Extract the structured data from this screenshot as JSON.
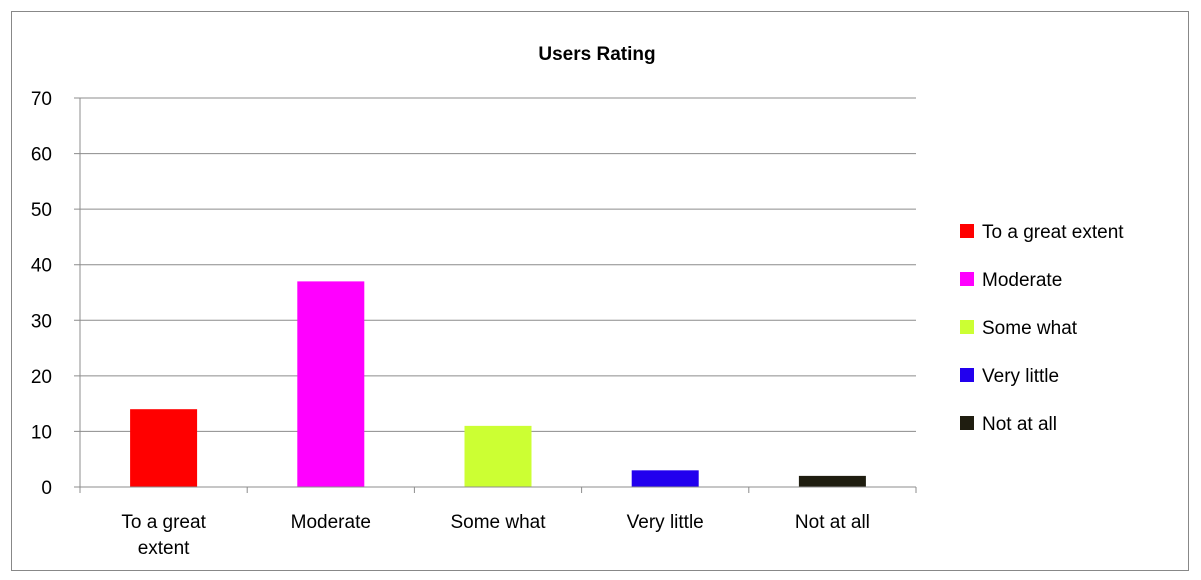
{
  "chart_data": {
    "type": "bar",
    "title": "Users Rating",
    "xlabel": "",
    "ylabel": "",
    "categories": [
      "To a great extent",
      "Moderate",
      "Some what",
      "Very little",
      "Not at all"
    ],
    "category_lines": [
      [
        "To a great",
        "extent"
      ],
      [
        "Moderate"
      ],
      [
        "Some what"
      ],
      [
        "Very little"
      ],
      [
        "Not at all"
      ]
    ],
    "values": [
      14,
      37,
      11,
      3,
      2
    ],
    "colors": [
      "#ff0000",
      "#ff00ff",
      "#ccff33",
      "#2200ee",
      "#1f1d10"
    ],
    "ylim": [
      0,
      70
    ],
    "yticks": [
      0,
      10,
      20,
      30,
      40,
      50,
      60,
      70
    ],
    "grid": true,
    "legend": {
      "placement": "right",
      "entries": [
        "To a great extent",
        "Moderate",
        "Some what",
        "Very little",
        "Not at all"
      ]
    }
  }
}
